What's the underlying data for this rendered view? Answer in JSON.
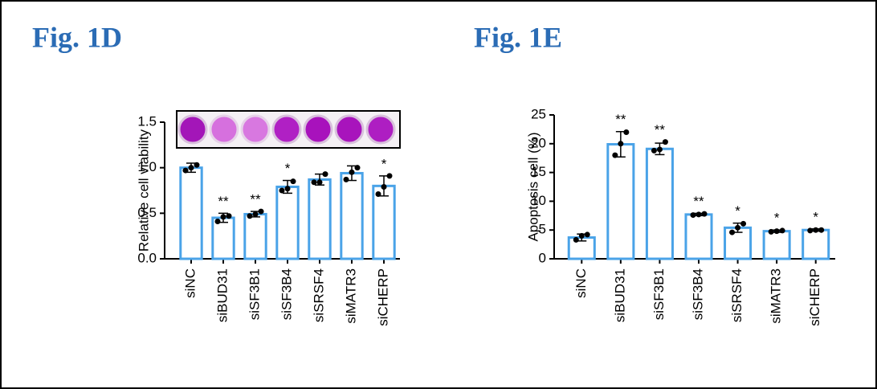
{
  "chart_data": [
    {
      "type": "bar",
      "title": "Fig. 1D",
      "ylabel": "Relative cell viability",
      "categories": [
        "siNC",
        "siBUD31",
        "siSF3B1",
        "siSF3B4",
        "siSRSF4",
        "siMATR3",
        "siCHERP"
      ],
      "values": [
        1.0,
        0.45,
        0.49,
        0.79,
        0.87,
        0.94,
        0.8
      ],
      "errors": [
        0.05,
        0.05,
        0.03,
        0.07,
        0.06,
        0.08,
        0.11
      ],
      "points": [
        [
          0.97,
          1.0,
          1.03
        ],
        [
          0.41,
          0.46,
          0.47
        ],
        [
          0.47,
          0.49,
          0.52
        ],
        [
          0.75,
          0.77,
          0.85
        ],
        [
          0.84,
          0.84,
          0.93
        ],
        [
          0.87,
          0.95,
          1.0
        ],
        [
          0.71,
          0.79,
          0.91
        ]
      ],
      "annotations": [
        null,
        "**",
        "**",
        "*",
        null,
        null,
        "*"
      ],
      "color": "#4aa3e8",
      "ylim": [
        0,
        1.5
      ],
      "yticks": [
        {
          "value": 0,
          "label": "0.0"
        },
        0.5,
        {
          "value": 1,
          "label": "1.0"
        },
        1.5
      ]
    },
    {
      "type": "bar",
      "title": "Fig. 1E",
      "ylabel": "Apoptosis cell (%)",
      "categories": [
        "siNC",
        "siBUD31",
        "siSF3B1",
        "siSF3B4",
        "siSRSF4",
        "siMATR3",
        "siCHERP"
      ],
      "values": [
        3.7,
        19.9,
        19.1,
        7.7,
        5.4,
        4.8,
        5.0
      ],
      "errors": [
        0.6,
        2.2,
        1.0,
        0.2,
        0.8,
        0.2,
        0.2
      ],
      "points": [
        [
          3.3,
          4.0,
          4.2
        ],
        [
          18.0,
          20.0,
          22.0
        ],
        [
          18.8,
          19.0,
          20.3
        ],
        [
          7.6,
          7.7,
          7.8
        ],
        [
          4.6,
          5.4,
          6.1
        ],
        [
          4.7,
          4.8,
          4.9
        ],
        [
          4.9,
          5.0,
          5.0
        ]
      ],
      "annotations": [
        null,
        "**",
        "**",
        "**",
        "*",
        "*",
        "*"
      ],
      "color": "#4aa3e8",
      "ylim": [
        0,
        25
      ],
      "yticks": [
        0,
        5,
        10,
        15,
        20,
        25
      ]
    }
  ]
}
